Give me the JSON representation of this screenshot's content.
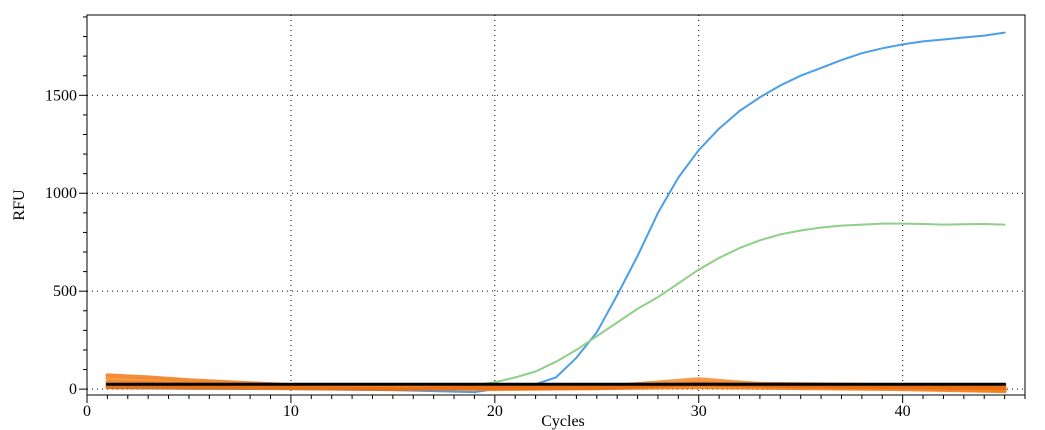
{
  "chart_data": {
    "type": "line",
    "title": "",
    "xlabel": "Cycles",
    "ylabel": "RFU",
    "xlim": [
      0,
      46
    ],
    "ylim": [
      -30,
      1910
    ],
    "x_ticks": [
      0,
      10,
      20,
      30,
      40
    ],
    "y_ticks": [
      0,
      500,
      1000,
      1500
    ],
    "grid": "dotted",
    "series": [
      {
        "color": "#4b9ee8",
        "x": [
          1,
          5,
          10,
          15,
          19,
          20,
          21,
          22,
          23,
          24,
          25,
          26,
          27,
          28,
          29,
          30,
          31,
          32,
          33,
          34,
          35,
          36,
          37,
          38,
          39,
          40,
          41,
          42,
          43,
          44,
          45
        ],
        "y": [
          5,
          2,
          0,
          -5,
          -15,
          0,
          10,
          25,
          60,
          160,
          290,
          480,
          680,
          900,
          1080,
          1220,
          1330,
          1420,
          1490,
          1550,
          1600,
          1640,
          1680,
          1715,
          1740,
          1760,
          1775,
          1785,
          1795,
          1805,
          1820
        ]
      },
      {
        "color": "#8fcf8a",
        "x": [
          1,
          5,
          10,
          15,
          18,
          19,
          20,
          21,
          22,
          23,
          24,
          25,
          26,
          27,
          28,
          29,
          30,
          31,
          32,
          33,
          34,
          35,
          36,
          37,
          38,
          39,
          40,
          41,
          42,
          43,
          44,
          45
        ],
        "y": [
          10,
          5,
          0,
          5,
          10,
          20,
          35,
          60,
          90,
          140,
          200,
          270,
          340,
          410,
          470,
          540,
          610,
          670,
          720,
          760,
          790,
          810,
          825,
          835,
          840,
          845,
          845,
          843,
          840,
          842,
          843,
          840
        ]
      },
      {
        "color": "#f07818",
        "x": [
          1,
          3,
          5,
          8,
          10,
          15,
          20,
          25,
          30,
          35,
          40,
          45
        ],
        "y": [
          70,
          60,
          45,
          30,
          20,
          15,
          10,
          15,
          30,
          25,
          20,
          15
        ]
      },
      {
        "color": "#f58a28",
        "x": [
          1,
          3,
          5,
          8,
          10,
          15,
          20,
          25,
          30,
          35,
          40,
          45
        ],
        "y": [
          55,
          45,
          35,
          25,
          15,
          10,
          5,
          10,
          50,
          10,
          5,
          -5
        ]
      },
      {
        "color": "#f07818",
        "x": [
          1,
          5,
          10,
          15,
          20,
          25,
          30,
          35,
          40,
          45
        ],
        "y": [
          35,
          25,
          15,
          8,
          5,
          5,
          10,
          5,
          0,
          -10
        ]
      },
      {
        "color": "#f58a28",
        "x": [
          1,
          5,
          10,
          15,
          20,
          25,
          30,
          35,
          40,
          45
        ],
        "y": [
          20,
          15,
          10,
          5,
          0,
          5,
          15,
          10,
          5,
          0
        ]
      },
      {
        "color": "#e86a10",
        "x": [
          1,
          5,
          10,
          15,
          20,
          25,
          30,
          35,
          40,
          45
        ],
        "y": [
          10,
          8,
          5,
          0,
          5,
          5,
          25,
          15,
          10,
          5
        ]
      },
      {
        "color": "#000000",
        "x": [
          1,
          45
        ],
        "y": [
          25,
          25
        ]
      }
    ]
  }
}
